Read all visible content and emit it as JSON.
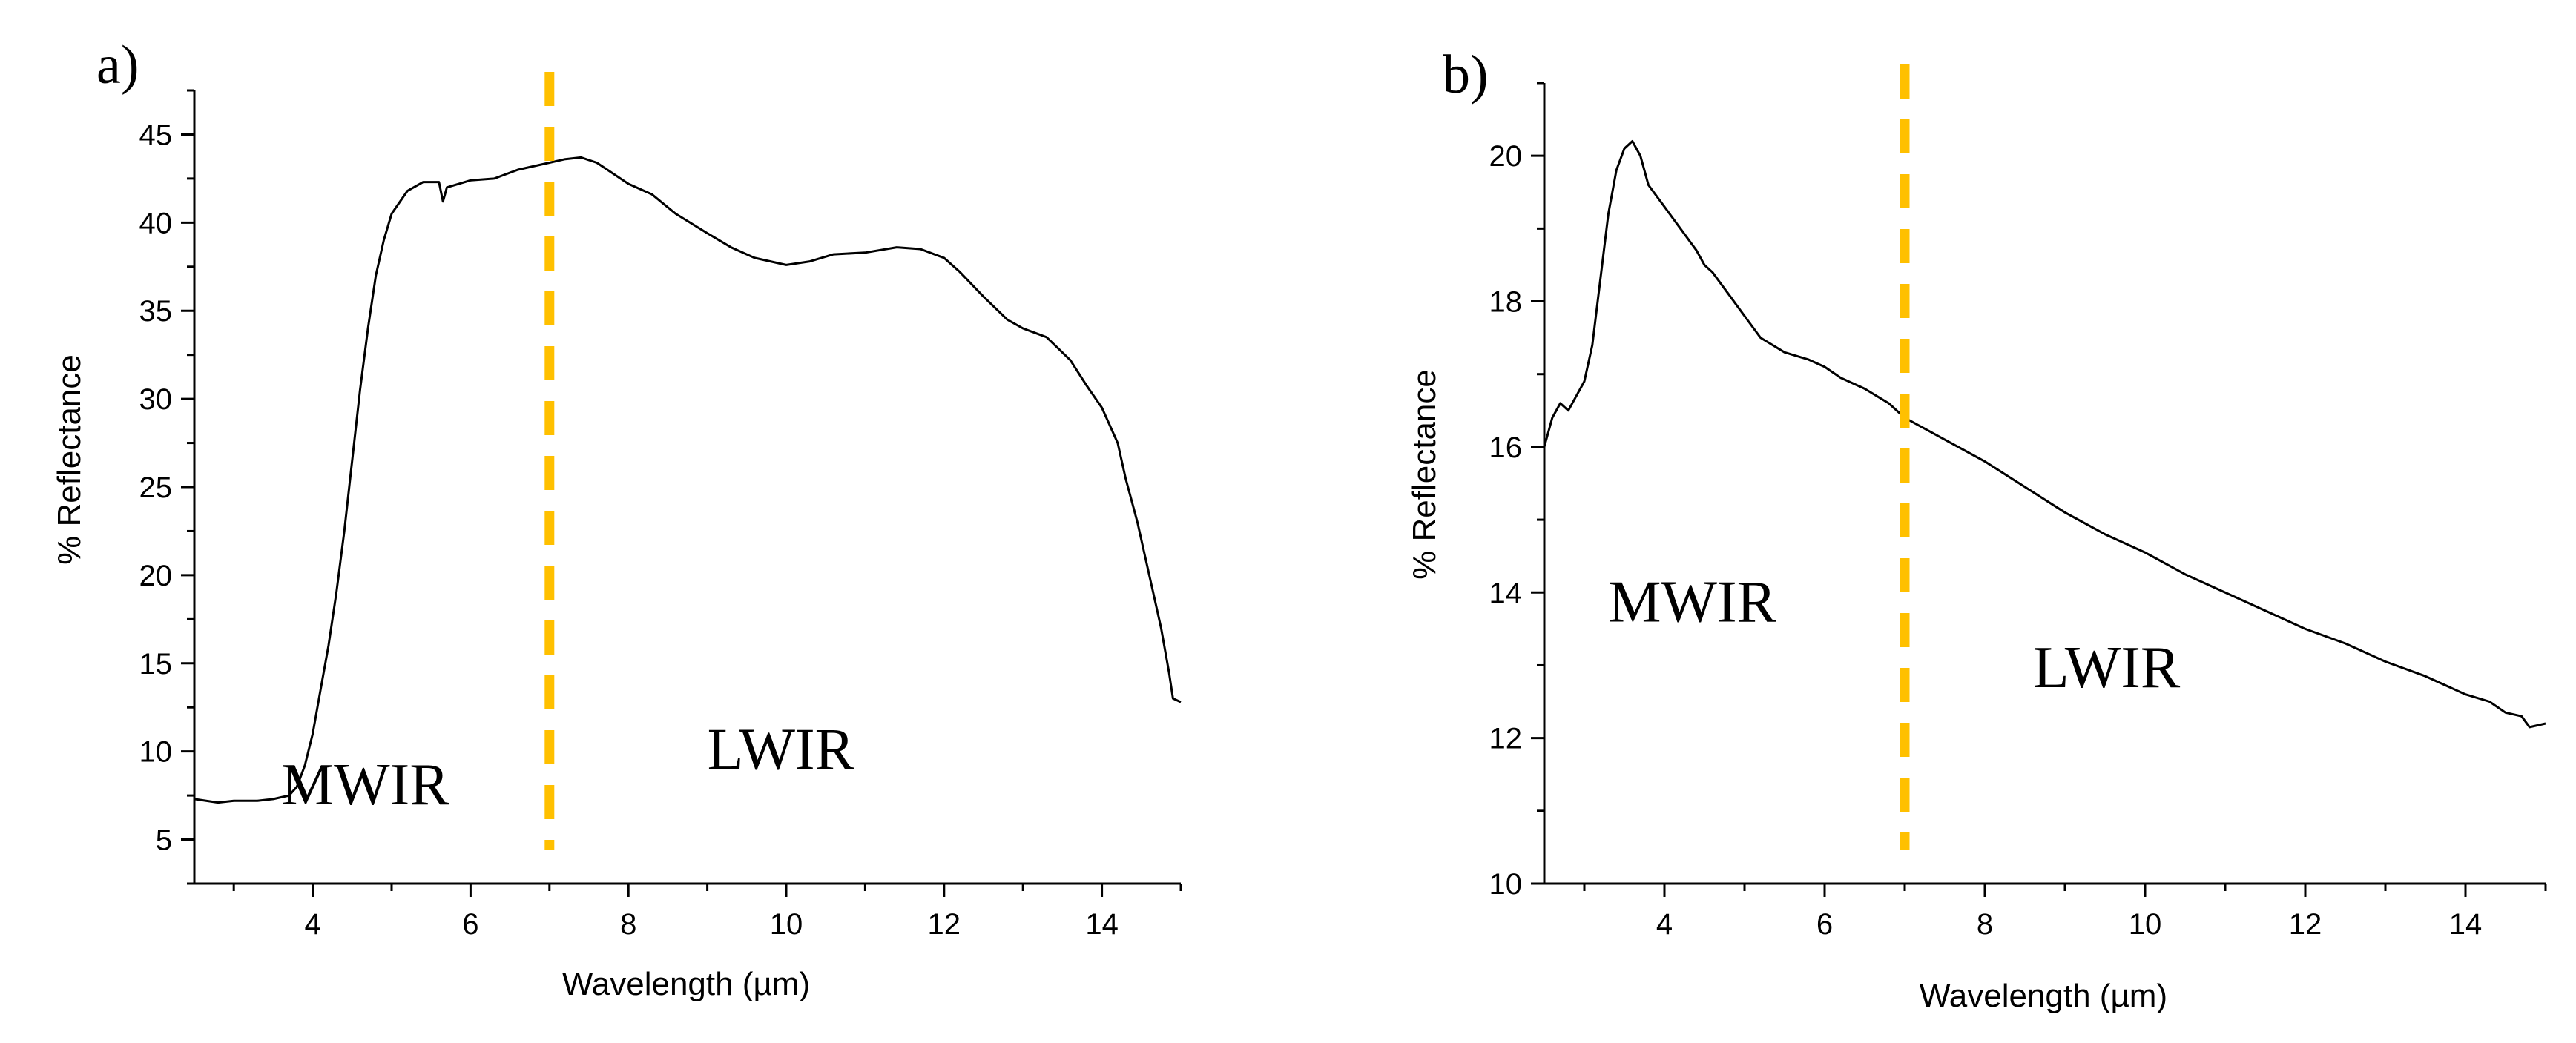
{
  "chart_data": [
    {
      "panel_label": "a)",
      "type": "line",
      "xlabel": "Wavelength (µm)",
      "ylabel": "% Reflectance",
      "xlim": [
        2.5,
        15.0
      ],
      "ylim": [
        2.5,
        47.5
      ],
      "xticks": [
        4,
        6,
        8,
        10,
        12,
        14
      ],
      "yticks": [
        5,
        10,
        15,
        20,
        25,
        30,
        35,
        40,
        45
      ],
      "divider_x": 7.0,
      "divider_color": "#FFC000",
      "line_color": "#000000",
      "region_labels": [
        {
          "text": "MWIR",
          "x": 3.6,
          "y": 7.0
        },
        {
          "text": "LWIR",
          "x": 9.0,
          "y": 9.0
        }
      ],
      "series": [
        {
          "name": "reflectance",
          "x": [
            2.5,
            2.8,
            3.0,
            3.3,
            3.5,
            3.7,
            3.8,
            3.9,
            4.0,
            4.1,
            4.2,
            4.3,
            4.4,
            4.5,
            4.6,
            4.7,
            4.8,
            4.9,
            5.0,
            5.2,
            5.4,
            5.6,
            5.65,
            5.7,
            6.0,
            6.3,
            6.6,
            7.0,
            7.2,
            7.4,
            7.6,
            7.8,
            8.0,
            8.3,
            8.6,
            9.0,
            9.3,
            9.6,
            10.0,
            10.3,
            10.6,
            11.0,
            11.4,
            11.7,
            12.0,
            12.2,
            12.5,
            12.8,
            13.0,
            13.3,
            13.6,
            13.8,
            14.0,
            14.2,
            14.3,
            14.45,
            14.55,
            14.65,
            14.75,
            14.85,
            14.9,
            15.0
          ],
          "y": [
            7.3,
            7.1,
            7.2,
            7.2,
            7.3,
            7.5,
            8.0,
            9.2,
            11.0,
            13.5,
            16.0,
            19.0,
            22.5,
            26.5,
            30.5,
            34.0,
            37.0,
            39.0,
            40.5,
            41.8,
            42.3,
            42.3,
            41.2,
            42.0,
            42.4,
            42.5,
            43.0,
            43.4,
            43.6,
            43.7,
            43.4,
            42.8,
            42.2,
            41.6,
            40.5,
            39.4,
            38.6,
            38.0,
            37.6,
            37.8,
            38.2,
            38.3,
            38.6,
            38.5,
            38.0,
            37.2,
            35.8,
            34.5,
            34.0,
            33.5,
            32.2,
            30.8,
            29.5,
            27.5,
            25.5,
            23.0,
            21.0,
            19.0,
            17.0,
            14.5,
            13.0,
            12.8
          ]
        }
      ]
    },
    {
      "panel_label": "b)",
      "type": "line",
      "xlabel": "Wavelength (µm)",
      "ylabel": "% Reflectance",
      "xlim": [
        2.5,
        15.0
      ],
      "ylim": [
        10,
        21
      ],
      "xticks": [
        4,
        6,
        8,
        10,
        12,
        14
      ],
      "yticks": [
        10,
        12,
        14,
        16,
        18,
        20
      ],
      "divider_x": 7.0,
      "divider_color": "#FFC000",
      "line_color": "#000000",
      "region_labels": [
        {
          "text": "MWIR",
          "x": 3.3,
          "y": 13.6
        },
        {
          "text": "LWIR",
          "x": 8.6,
          "y": 12.7
        }
      ],
      "series": [
        {
          "name": "reflectance",
          "x": [
            2.5,
            2.6,
            2.7,
            2.8,
            2.9,
            3.0,
            3.1,
            3.2,
            3.3,
            3.4,
            3.5,
            3.6,
            3.7,
            3.8,
            4.0,
            4.2,
            4.4,
            4.5,
            4.6,
            4.8,
            5.0,
            5.2,
            5.5,
            5.8,
            6.0,
            6.2,
            6.5,
            6.8,
            7.0,
            7.5,
            8.0,
            8.5,
            9.0,
            9.5,
            10.0,
            10.5,
            11.0,
            11.5,
            12.0,
            12.5,
            13.0,
            13.5,
            14.0,
            14.3,
            14.5,
            14.7,
            14.8,
            15.0
          ],
          "y": [
            16.0,
            16.4,
            16.6,
            16.5,
            16.7,
            16.9,
            17.4,
            18.3,
            19.2,
            19.8,
            20.1,
            20.2,
            20.0,
            19.6,
            19.3,
            19.0,
            18.7,
            18.5,
            18.4,
            18.1,
            17.8,
            17.5,
            17.3,
            17.2,
            17.1,
            16.95,
            16.8,
            16.6,
            16.4,
            16.1,
            15.8,
            15.45,
            15.1,
            14.8,
            14.55,
            14.25,
            14.0,
            13.75,
            13.5,
            13.3,
            13.05,
            12.85,
            12.6,
            12.5,
            12.35,
            12.3,
            12.15,
            12.2
          ]
        }
      ]
    }
  ]
}
